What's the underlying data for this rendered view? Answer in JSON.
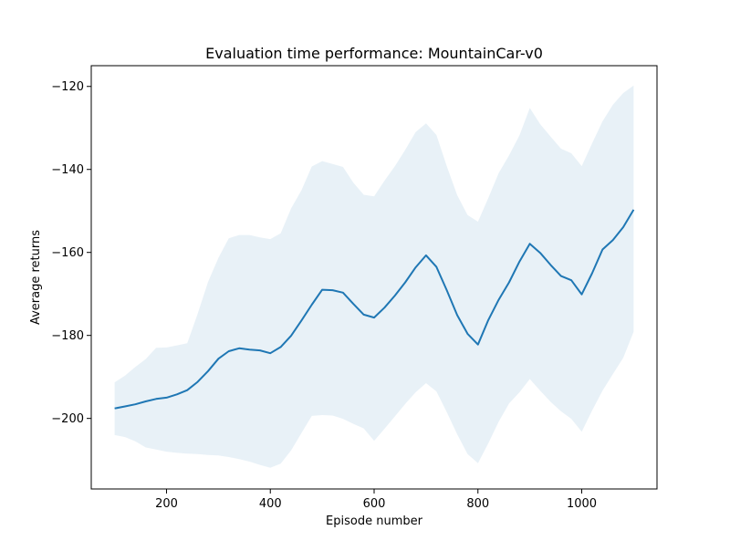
{
  "chart_data": {
    "type": "line",
    "title": "Evaluation time performance: MountainCar-v0",
    "xlabel": "Episode number",
    "ylabel": "Average returns",
    "xlim": [
      55,
      1145
    ],
    "ylim": [
      -217,
      -115
    ],
    "xticks": [
      200,
      400,
      600,
      800,
      1000
    ],
    "yticks": [
      -200,
      -180,
      -160,
      -140,
      -120
    ],
    "grid": false,
    "colors": {
      "line": "#1f77b4",
      "band": "#1f77b4",
      "band_opacity": 0.1
    },
    "series": [
      {
        "x": [
          100,
          120,
          140,
          160,
          180,
          200,
          220,
          240,
          260,
          280,
          300,
          320,
          340,
          360,
          380,
          400,
          420,
          440,
          460,
          480,
          500,
          520,
          540,
          560,
          580,
          600,
          620,
          640,
          660,
          680,
          700,
          720,
          740,
          760,
          780,
          800,
          820,
          840,
          860,
          880,
          900,
          920,
          940,
          960,
          980,
          1000,
          1020,
          1040,
          1060,
          1080,
          1100
        ],
        "y": [
          -197.6,
          -197.1,
          -196.6,
          -195.9,
          -195.3,
          -195.0,
          -194.2,
          -193.2,
          -191.2,
          -188.6,
          -185.6,
          -183.8,
          -183.1,
          -183.4,
          -183.6,
          -184.3,
          -182.8,
          -180.1,
          -176.4,
          -172.6,
          -169.0,
          -169.1,
          -169.7,
          -172.4,
          -175.0,
          -175.7,
          -173.3,
          -170.4,
          -167.2,
          -163.6,
          -160.7,
          -163.5,
          -169.1,
          -175.1,
          -179.6,
          -182.2,
          -176.3,
          -171.4,
          -167.2,
          -162.2,
          -157.9,
          -160.1,
          -163.0,
          -165.7,
          -166.7,
          -170.1,
          -165.0,
          -159.3,
          -157.0,
          -153.9,
          -149.7
        ],
        "lower": [
          -204.0,
          -204.5,
          -205.5,
          -207.0,
          -207.5,
          -208.0,
          -208.3,
          -208.5,
          -208.6,
          -208.8,
          -208.9,
          -209.3,
          -209.8,
          -210.4,
          -211.2,
          -211.9,
          -210.9,
          -207.7,
          -203.5,
          -199.4,
          -199.2,
          -199.3,
          -200.1,
          -201.3,
          -202.4,
          -205.4,
          -202.5,
          -199.5,
          -196.5,
          -193.7,
          -191.5,
          -193.5,
          -198.5,
          -203.8,
          -208.6,
          -210.8,
          -206.0,
          -200.8,
          -196.4,
          -193.7,
          -190.5,
          -193.3,
          -196.0,
          -198.3,
          -200.1,
          -203.2,
          -198.1,
          -193.3,
          -189.3,
          -185.4,
          -179.1
        ],
        "upper": [
          -191.3,
          -189.7,
          -187.6,
          -185.7,
          -183.0,
          -182.9,
          -182.4,
          -181.9,
          -174.8,
          -167.1,
          -161.3,
          -156.6,
          -155.8,
          -155.8,
          -156.4,
          -156.8,
          -155.4,
          -149.4,
          -145.0,
          -139.3,
          -138.0,
          -138.7,
          -139.4,
          -143.2,
          -146.1,
          -146.5,
          -142.7,
          -139.2,
          -135.3,
          -131.0,
          -128.9,
          -131.7,
          -139.2,
          -146.2,
          -151.0,
          -152.6,
          -146.9,
          -140.9,
          -136.6,
          -131.8,
          -125.2,
          -129.1,
          -132.1,
          -135.0,
          -136.1,
          -139.2,
          -133.7,
          -128.4,
          -124.4,
          -121.6,
          -119.8
        ]
      }
    ]
  }
}
